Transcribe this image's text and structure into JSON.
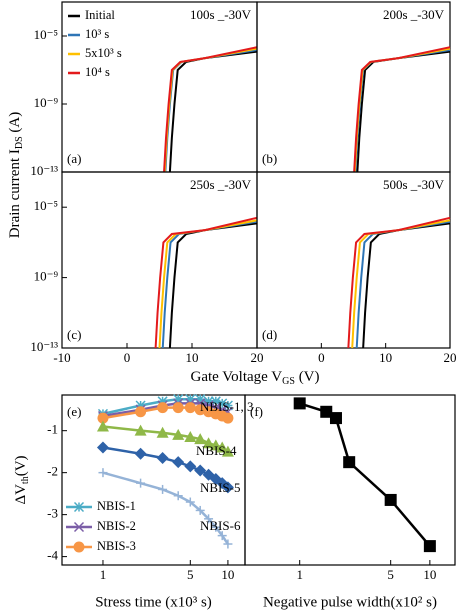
{
  "axis_labels": {
    "top_ylabel": {
      "text": "Drain current I",
      "sub": "DS",
      "after": " (A)"
    },
    "top_xlabel": {
      "text": "Gate Voltage V",
      "sub": "GS",
      "after": " (V)"
    }
  },
  "chart_data": [
    {
      "type": "line",
      "label": "(a)",
      "title": "100s _-30V",
      "yscale": "log",
      "xlim": [
        -10,
        20
      ],
      "ylim": [
        1e-13,
        0.001
      ],
      "legend": "upper left",
      "yticks": [
        {
          "value": 1e-05,
          "label": "10⁻⁵"
        },
        {
          "value": 1e-09,
          "label": "10⁻⁹"
        },
        {
          "value": 1e-13,
          "label": "10⁻¹³"
        }
      ],
      "series": [
        {
          "name": "Initial",
          "color": "#000000",
          "x": [
            6.6,
            6.9,
            7.3,
            7.8,
            9.1,
            12,
            20
          ],
          "values": [
            1e-13,
            1e-11,
            1e-09,
            1e-07,
            3e-07,
            5e-07,
            1.2e-06
          ]
        },
        {
          "name": "10³ s",
          "color": "#2e75b6",
          "x": [
            5.9,
            6.2,
            6.6,
            7.1,
            8.4,
            12,
            20
          ],
          "values": [
            1e-13,
            1e-11,
            1e-09,
            1e-07,
            3e-07,
            5e-07,
            1.5e-06
          ]
        },
        {
          "name": "5x10³ s",
          "color": "#ffc000",
          "x": [
            5.8,
            6.1,
            6.5,
            7,
            8.3,
            12,
            20
          ],
          "values": [
            1e-13,
            1e-11,
            1e-09,
            1e-07,
            3e-07,
            5e-07,
            1.8e-06
          ]
        },
        {
          "name": "10⁴ s",
          "color": "#e31a1c",
          "x": [
            5.7,
            6,
            6.4,
            6.9,
            8.2,
            12,
            20
          ],
          "values": [
            1e-13,
            1e-11,
            1e-09,
            1e-07,
            3e-07,
            5e-07,
            2.2e-06
          ]
        }
      ]
    },
    {
      "type": "line",
      "label": "(b)",
      "title": "200s _-30V",
      "yscale": "log",
      "xlim": [
        -10,
        20
      ],
      "ylim": [
        1e-13,
        0.001
      ],
      "series": [
        {
          "color": "#000000",
          "x": [
            5.6,
            5.9,
            6.3,
            6.8,
            8.1,
            12,
            20
          ],
          "values": [
            1e-13,
            1e-11,
            1e-09,
            1e-07,
            3e-07,
            5e-07,
            1.2e-06
          ]
        },
        {
          "color": "#2e75b6",
          "x": [
            5.3,
            5.6,
            6,
            6.5,
            7.8,
            12,
            20
          ],
          "values": [
            1e-13,
            1e-11,
            1e-09,
            1e-07,
            3e-07,
            5e-07,
            1.5e-06
          ]
        },
        {
          "color": "#ffc000",
          "x": [
            5.2,
            5.5,
            5.9,
            6.4,
            7.7,
            12,
            20
          ],
          "values": [
            1e-13,
            1e-11,
            1e-09,
            1e-07,
            3e-07,
            5e-07,
            1.8e-06
          ]
        },
        {
          "color": "#e31a1c",
          "x": [
            5.1,
            5.4,
            5.8,
            6.3,
            7.6,
            12,
            20
          ],
          "values": [
            1e-13,
            1e-11,
            1e-09,
            1e-07,
            3e-07,
            5e-07,
            2.2e-06
          ]
        }
      ]
    },
    {
      "type": "line",
      "label": "(c)",
      "title": "250s _-30V",
      "yscale": "log",
      "xlim": [
        -10,
        20
      ],
      "ylim": [
        1e-13,
        0.001
      ],
      "yticks": [
        {
          "value": 1e-05,
          "label": "10⁻⁵"
        },
        {
          "value": 1e-09,
          "label": "10⁻⁹"
        },
        {
          "value": 1e-13,
          "label": "10⁻¹³"
        }
      ],
      "xticks": [
        -10,
        0,
        10,
        20
      ],
      "series": [
        {
          "color": "#000000",
          "x": [
            6.6,
            6.9,
            7.3,
            7.8,
            9.1,
            12,
            20
          ],
          "values": [
            1e-13,
            1e-11,
            1e-09,
            1e-07,
            3e-07,
            5e-07,
            1.2e-06
          ]
        },
        {
          "color": "#2e75b6",
          "x": [
            5.5,
            5.8,
            6.2,
            6.7,
            8,
            12,
            20
          ],
          "values": [
            1e-13,
            1e-11,
            1e-09,
            1e-07,
            3e-07,
            5e-07,
            1.5e-06
          ]
        },
        {
          "color": "#ffc000",
          "x": [
            5,
            5.3,
            5.7,
            6.2,
            7.5,
            12,
            20
          ],
          "values": [
            1e-13,
            1e-11,
            1e-09,
            1e-07,
            3e-07,
            5e-07,
            1.8e-06
          ]
        },
        {
          "color": "#e31a1c",
          "x": [
            4.4,
            4.7,
            5.1,
            5.6,
            6.9,
            12,
            20
          ],
          "values": [
            1e-13,
            1e-11,
            1e-09,
            1e-07,
            3e-07,
            5e-07,
            2.5e-06
          ]
        }
      ]
    },
    {
      "type": "line",
      "label": "(d)",
      "title": "500s _-30V",
      "yscale": "log",
      "xlim": [
        -10,
        20
      ],
      "ylim": [
        1e-13,
        0.001
      ],
      "xticks": [
        0,
        10,
        20
      ],
      "series": [
        {
          "color": "#000000",
          "x": [
            6.5,
            6.8,
            7.2,
            7.7,
            9,
            12,
            20
          ],
          "values": [
            1e-13,
            1e-11,
            1e-09,
            1e-07,
            3e-07,
            5e-07,
            1.2e-06
          ]
        },
        {
          "color": "#2e75b6",
          "x": [
            5.5,
            5.8,
            6.2,
            6.7,
            8,
            12,
            20
          ],
          "values": [
            1e-13,
            1e-11,
            1e-09,
            1e-07,
            3e-07,
            5e-07,
            1.5e-06
          ]
        },
        {
          "color": "#ffc000",
          "x": [
            4.8,
            5.1,
            5.5,
            6,
            7.3,
            12,
            20
          ],
          "values": [
            1e-13,
            1e-11,
            1e-09,
            1e-07,
            3e-07,
            5e-07,
            1.8e-06
          ]
        },
        {
          "color": "#e31a1c",
          "x": [
            4.2,
            4.5,
            4.9,
            5.4,
            6.7,
            12,
            20
          ],
          "values": [
            1e-13,
            1e-11,
            1e-09,
            1e-07,
            3e-07,
            5e-07,
            2.5e-06
          ]
        }
      ]
    },
    {
      "type": "line",
      "label": "(e)",
      "xscale": "log",
      "xlim": [
        0.47,
        13.7
      ],
      "ylim": [
        -4.2,
        -0.15
      ],
      "legend": "lower left",
      "xlabel": "Stress time (x10³ s)",
      "ylabel": {
        "text": "ΔV",
        "sub": "th",
        "after": "(V)"
      },
      "xticks": [
        1,
        5,
        10
      ],
      "yticks": [
        -1,
        -2,
        -3,
        -4
      ],
      "annotations": [
        "NBIS-1, 3"
      ],
      "x": [
        1,
        2,
        3,
        4,
        5,
        6,
        7,
        8,
        9,
        10
      ],
      "series": [
        {
          "name": "NBIS-1",
          "color": "#4bacc6",
          "marker": "star",
          "values": [
            -0.6,
            -0.4,
            -0.3,
            -0.25,
            -0.25,
            -0.25,
            -0.3,
            -0.3,
            -0.35,
            -0.4
          ]
        },
        {
          "name": "NBIS-2",
          "color": "#7b5ea7",
          "marker": "x",
          "values": [
            -0.65,
            -0.5,
            -0.4,
            -0.35,
            -0.35,
            -0.35,
            -0.4,
            -0.45,
            -0.5,
            -0.55
          ]
        },
        {
          "name": "NBIS-3",
          "color": "#f79646",
          "marker": "circle",
          "values": [
            -0.7,
            -0.55,
            -0.45,
            -0.45,
            -0.45,
            -0.5,
            -0.55,
            -0.6,
            -0.65,
            -0.7
          ]
        },
        {
          "name": "NBIS-4",
          "color": "#8fb848",
          "marker": "triangle",
          "in_legend": false,
          "values": [
            -0.9,
            -1,
            -1.05,
            -1.1,
            -1.15,
            -1.2,
            -1.3,
            -1.35,
            -1.4,
            -1.5
          ]
        },
        {
          "name": "NBIS-5",
          "color": "#2e62a8",
          "marker": "diamond",
          "in_legend": false,
          "values": [
            -1.4,
            -1.55,
            -1.65,
            -1.75,
            -1.85,
            -1.95,
            -2.05,
            -2.15,
            -2.25,
            -2.35
          ]
        },
        {
          "name": "NBIS-6",
          "color": "#95b3d7",
          "marker": "plus",
          "in_legend": false,
          "values": [
            -2,
            -2.25,
            -2.4,
            -2.55,
            -2.7,
            -2.9,
            -3.1,
            -3.3,
            -3.5,
            -3.7
          ]
        }
      ]
    },
    {
      "type": "line",
      "label": "(f)",
      "xscale": "log",
      "xlim": [
        0.38,
        15.6
      ],
      "ylim": [
        -4.2,
        -0.15
      ],
      "xlabel": "Negative pulse width(x10² s)",
      "xticks": [
        1,
        5,
        10
      ],
      "x": [
        1,
        1.6,
        1.9,
        2.4,
        5,
        10
      ],
      "series": [
        {
          "color": "#000000",
          "marker": "square",
          "values": [
            -0.35,
            -0.55,
            -0.7,
            -1.75,
            -2.65,
            -3.75
          ]
        }
      ]
    }
  ]
}
